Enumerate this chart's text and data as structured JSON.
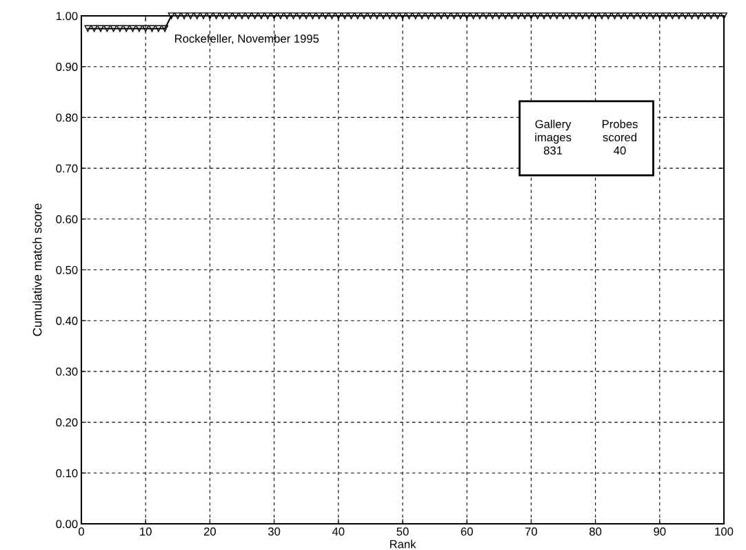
{
  "chart_data": {
    "type": "line",
    "xlabel": "Rank",
    "ylabel": "Cumulative match score",
    "x": [
      1,
      2,
      3,
      4,
      5,
      6,
      7,
      8,
      9,
      10,
      11,
      12,
      13,
      14,
      15,
      16,
      17,
      18,
      19,
      20,
      21,
      22,
      23,
      24,
      25,
      26,
      27,
      28,
      29,
      30,
      31,
      32,
      33,
      34,
      35,
      36,
      37,
      38,
      39,
      40,
      41,
      42,
      43,
      44,
      45,
      46,
      47,
      48,
      49,
      50,
      51,
      52,
      53,
      54,
      55,
      56,
      57,
      58,
      59,
      60,
      61,
      62,
      63,
      64,
      65,
      66,
      67,
      68,
      69,
      70,
      71,
      72,
      73,
      74,
      75,
      76,
      77,
      78,
      79,
      80,
      81,
      82,
      83,
      84,
      85,
      86,
      87,
      88,
      89,
      90,
      91,
      92,
      93,
      94,
      95,
      96,
      97,
      98,
      99,
      100
    ],
    "series": [
      {
        "name": "Rockefeller, November 1995",
        "color": "#000000",
        "values": [
          0.975,
          0.975,
          0.975,
          0.975,
          0.975,
          0.975,
          0.975,
          0.975,
          0.975,
          0.975,
          0.975,
          0.975,
          0.975,
          1,
          1,
          1,
          1,
          1,
          1,
          1,
          1,
          1,
          1,
          1,
          1,
          1,
          1,
          1,
          1,
          1,
          1,
          1,
          1,
          1,
          1,
          1,
          1,
          1,
          1,
          1,
          1,
          1,
          1,
          1,
          1,
          1,
          1,
          1,
          1,
          1,
          1,
          1,
          1,
          1,
          1,
          1,
          1,
          1,
          1,
          1,
          1,
          1,
          1,
          1,
          1,
          1,
          1,
          1,
          1,
          1,
          1,
          1,
          1,
          1,
          1,
          1,
          1,
          1,
          1,
          1,
          1,
          1,
          1,
          1,
          1,
          1,
          1,
          1,
          1,
          1,
          1,
          1,
          1,
          1,
          1,
          1,
          1,
          1,
          1,
          1
        ]
      }
    ],
    "xlim": [
      0,
      100
    ],
    "xticks": [
      0,
      10,
      20,
      30,
      40,
      50,
      60,
      70,
      80,
      90,
      100
    ],
    "ylim": [
      0,
      1
    ],
    "yticks": [
      {
        "value": 0,
        "label": "0.00"
      },
      {
        "value": 0.1,
        "label": "0.10"
      },
      {
        "value": 0.2,
        "label": "0.20"
      },
      {
        "value": 0.3,
        "label": "0.30"
      },
      {
        "value": 0.4,
        "label": "0.40"
      },
      {
        "value": 0.5,
        "label": "0.50"
      },
      {
        "value": 0.6,
        "label": "0.60"
      },
      {
        "value": 0.7,
        "label": "0.70"
      },
      {
        "value": 0.8,
        "label": "0.80"
      },
      {
        "value": 0.9,
        "label": "0.90"
      },
      {
        "value": 1,
        "label": "1.00"
      }
    ],
    "annotations": [
      "Gallery\nimages\n831",
      "Probes\nscored\n40"
    ],
    "grid": true,
    "marker": "triangle",
    "line_style": "solid"
  }
}
